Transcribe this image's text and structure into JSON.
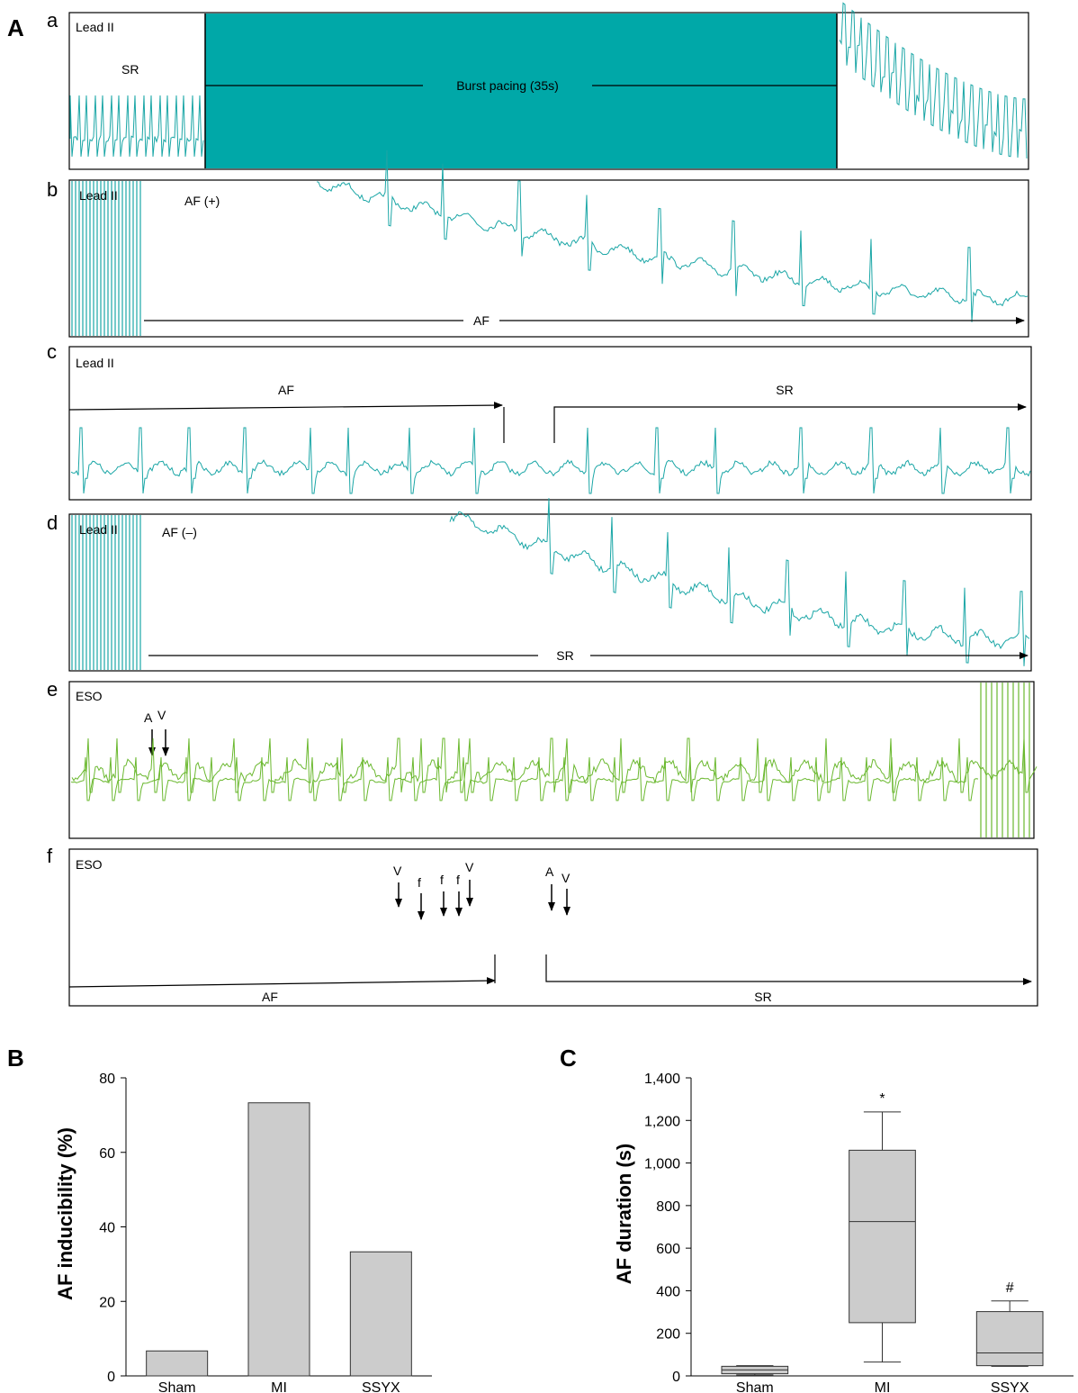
{
  "panel_a": {
    "letter": "A",
    "traces": [
      {
        "letter": "a",
        "lead": "Lead II",
        "labels": [
          "SR",
          "Burst pacing (35s)"
        ]
      },
      {
        "letter": "b",
        "lead": "Lead II",
        "labels": [
          "AF (+)",
          "AF"
        ]
      },
      {
        "letter": "c",
        "lead": "Lead II",
        "labels": [
          "AF",
          "SR"
        ]
      },
      {
        "letter": "d",
        "lead": "Lead II",
        "labels": [
          "AF (–)",
          "SR"
        ]
      },
      {
        "letter": "e",
        "lead": "ESO",
        "labels": [
          "A",
          "V"
        ]
      },
      {
        "letter": "f",
        "lead": "ESO",
        "labels": [
          "V",
          "f",
          "f",
          "f",
          "V",
          "A",
          "V",
          "AF",
          "SR"
        ]
      }
    ],
    "colors": {
      "lead_ii": "#1aa6a6",
      "eso": "#6ab82e",
      "pacing": "#00a8a8"
    }
  },
  "chart_data": [
    {
      "panel": "B",
      "type": "bar",
      "categories": [
        "Sham",
        "MI",
        "SSYX"
      ],
      "values": [
        6.7,
        73.3,
        33.3
      ],
      "ylabel": "AF inducibility (%)",
      "ylim": [
        0,
        80
      ],
      "yticks": [
        "0",
        "20",
        "40",
        "60",
        "80"
      ],
      "color": "#cccccc"
    },
    {
      "panel": "C",
      "type": "box",
      "categories": [
        "Sham",
        "MI",
        "SSYX"
      ],
      "boxes": [
        {
          "min": 5,
          "q1": 10,
          "median": 28,
          "q3": 45,
          "max": 48,
          "mark": ""
        },
        {
          "min": 65,
          "q1": 250,
          "median": 725,
          "q3": 1060,
          "max": 1240,
          "mark": "*"
        },
        {
          "min": 45,
          "q1": 48,
          "median": 108,
          "q3": 302,
          "max": 352,
          "mark": "#"
        }
      ],
      "ylabel": "AF duration (s)",
      "ylim": [
        0,
        1400
      ],
      "yticks": [
        "0",
        "200",
        "400",
        "600",
        "800",
        "1,000",
        "1,200",
        "1,400"
      ],
      "color": "#cccccc"
    }
  ]
}
